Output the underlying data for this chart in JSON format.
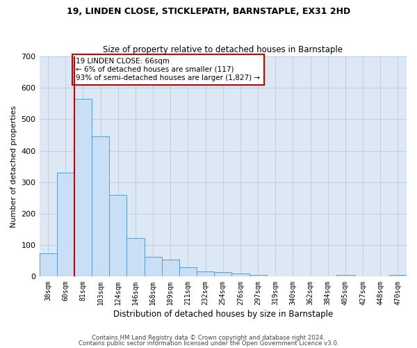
{
  "title1": "19, LINDEN CLOSE, STICKLEPATH, BARNSTAPLE, EX31 2HD",
  "title2": "Size of property relative to detached houses in Barnstaple",
  "xlabel": "Distribution of detached houses by size in Barnstaple",
  "ylabel": "Number of detached properties",
  "categories": [
    "38sqm",
    "60sqm",
    "81sqm",
    "103sqm",
    "124sqm",
    "146sqm",
    "168sqm",
    "189sqm",
    "211sqm",
    "232sqm",
    "254sqm",
    "276sqm",
    "297sqm",
    "319sqm",
    "340sqm",
    "362sqm",
    "384sqm",
    "405sqm",
    "427sqm",
    "448sqm",
    "470sqm"
  ],
  "values": [
    75,
    330,
    565,
    445,
    260,
    122,
    63,
    55,
    30,
    17,
    15,
    10,
    5,
    0,
    0,
    0,
    0,
    5,
    2,
    2,
    5
  ],
  "bar_color": "#c9dff5",
  "bar_edge_color": "#5b9bd5",
  "vline_x_index": 1.5,
  "vline_color": "#cc0000",
  "annotation_text": "19 LINDEN CLOSE: 66sqm\n← 6% of detached houses are smaller (117)\n93% of semi-detached houses are larger (1,827) →",
  "annotation_box_color": "#ffffff",
  "annotation_box_edge": "#cc0000",
  "footer1": "Contains HM Land Registry data © Crown copyright and database right 2024.",
  "footer2": "Contains public sector information licensed under the Open Government Licence v3.0.",
  "bg_color": "#ffffff",
  "plot_bg_color": "#dde8f5",
  "grid_color": "#b8c8dc",
  "ylim": [
    0,
    700
  ],
  "yticks": [
    0,
    100,
    200,
    300,
    400,
    500,
    600,
    700
  ],
  "fig_width": 6.0,
  "fig_height": 5.0,
  "dpi": 100
}
